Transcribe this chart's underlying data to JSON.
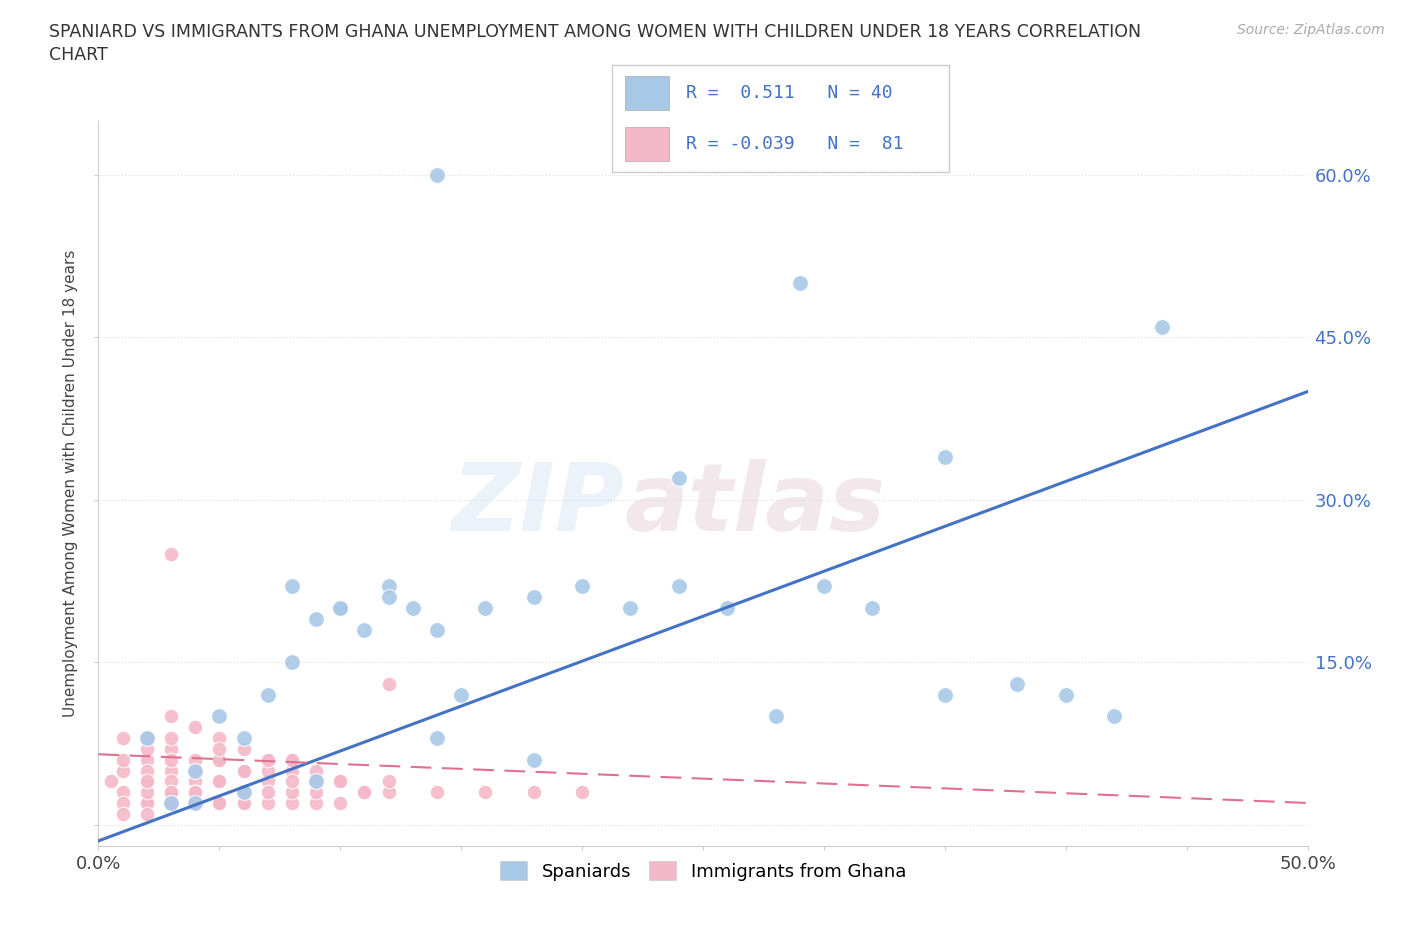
{
  "title_line1": "SPANIARD VS IMMIGRANTS FROM GHANA UNEMPLOYMENT AMONG WOMEN WITH CHILDREN UNDER 18 YEARS CORRELATION",
  "title_line2": "CHART",
  "source": "Source: ZipAtlas.com",
  "ylabel": "Unemployment Among Women with Children Under 18 years",
  "xlim": [
    0,
    0.5
  ],
  "ylim": [
    -0.02,
    0.65
  ],
  "xtick_positions": [
    0.0,
    0.05,
    0.1,
    0.15,
    0.2,
    0.25,
    0.3,
    0.35,
    0.4,
    0.45,
    0.5
  ],
  "xtick_labels": [
    "0.0%",
    "",
    "",
    "",
    "",
    "",
    "",
    "",
    "",
    "",
    "50.0%"
  ],
  "ytick_positions": [
    0.0,
    0.15,
    0.3,
    0.45,
    0.6
  ],
  "ytick_labels": [
    "",
    "15.0%",
    "30.0%",
    "45.0%",
    "60.0%"
  ],
  "spaniards_x": [
    0.02,
    0.04,
    0.05,
    0.06,
    0.07,
    0.08,
    0.09,
    0.1,
    0.11,
    0.12,
    0.13,
    0.14,
    0.15,
    0.08,
    0.1,
    0.12,
    0.14,
    0.16,
    0.18,
    0.2,
    0.22,
    0.24,
    0.26,
    0.28,
    0.3,
    0.32,
    0.35,
    0.38,
    0.4,
    0.42,
    0.14,
    0.29,
    0.44,
    0.35,
    0.24,
    0.18,
    0.09,
    0.06,
    0.04,
    0.03
  ],
  "spaniards_y": [
    0.08,
    0.05,
    0.1,
    0.08,
    0.12,
    0.15,
    0.19,
    0.2,
    0.18,
    0.22,
    0.2,
    0.08,
    0.12,
    0.22,
    0.2,
    0.21,
    0.18,
    0.2,
    0.21,
    0.22,
    0.2,
    0.22,
    0.2,
    0.1,
    0.22,
    0.2,
    0.12,
    0.13,
    0.12,
    0.1,
    0.6,
    0.5,
    0.46,
    0.34,
    0.32,
    0.06,
    0.04,
    0.03,
    0.02,
    0.02
  ],
  "ghana_x": [
    0.005,
    0.01,
    0.01,
    0.02,
    0.02,
    0.02,
    0.03,
    0.03,
    0.03,
    0.04,
    0.04,
    0.04,
    0.05,
    0.05,
    0.05,
    0.06,
    0.06,
    0.06,
    0.07,
    0.07,
    0.07,
    0.08,
    0.08,
    0.08,
    0.09,
    0.09,
    0.1,
    0.1,
    0.11,
    0.12,
    0.01,
    0.02,
    0.02,
    0.03,
    0.03,
    0.04,
    0.04,
    0.05,
    0.05,
    0.06,
    0.06,
    0.07,
    0.07,
    0.08,
    0.08,
    0.09,
    0.09,
    0.1,
    0.11,
    0.12,
    0.01,
    0.02,
    0.03,
    0.03,
    0.04,
    0.05,
    0.05,
    0.06,
    0.07,
    0.08,
    0.01,
    0.02,
    0.02,
    0.03,
    0.04,
    0.05,
    0.01,
    0.02,
    0.03,
    0.04,
    0.05,
    0.06,
    0.02,
    0.03,
    0.04,
    0.14,
    0.16,
    0.18,
    0.2,
    0.03,
    0.12
  ],
  "ghana_y": [
    0.04,
    0.03,
    0.05,
    0.02,
    0.04,
    0.06,
    0.03,
    0.05,
    0.07,
    0.02,
    0.04,
    0.06,
    0.02,
    0.04,
    0.06,
    0.02,
    0.03,
    0.05,
    0.02,
    0.04,
    0.06,
    0.02,
    0.03,
    0.05,
    0.02,
    0.04,
    0.02,
    0.04,
    0.03,
    0.03,
    0.06,
    0.07,
    0.05,
    0.06,
    0.04,
    0.05,
    0.03,
    0.04,
    0.06,
    0.03,
    0.05,
    0.03,
    0.05,
    0.04,
    0.06,
    0.03,
    0.05,
    0.04,
    0.03,
    0.04,
    0.08,
    0.08,
    0.08,
    0.1,
    0.09,
    0.08,
    0.07,
    0.07,
    0.06,
    0.06,
    0.02,
    0.02,
    0.03,
    0.02,
    0.03,
    0.02,
    0.01,
    0.01,
    0.02,
    0.02,
    0.02,
    0.02,
    0.04,
    0.03,
    0.03,
    0.03,
    0.03,
    0.03,
    0.03,
    0.25,
    0.13
  ],
  "blue_line_x": [
    0.0,
    0.5
  ],
  "blue_line_y": [
    -0.015,
    0.4
  ],
  "pink_line_x": [
    0.0,
    0.5
  ],
  "pink_line_y": [
    0.065,
    0.02
  ],
  "spaniards_color": "#a8c8e8",
  "ghana_color": "#f4b8c8",
  "spaniards_line_color": "#4472c4",
  "ghana_line_color": "#e07090",
  "R_spaniards": 0.511,
  "N_spaniards": 40,
  "R_ghana": -0.039,
  "N_ghana": 81,
  "watermark_zip": "ZIP",
  "watermark_atlas": "atlas",
  "legend_spaniards": "Spaniards",
  "legend_ghana": "Immigrants from Ghana",
  "background_color": "#ffffff",
  "grid_color": "#dddddd"
}
